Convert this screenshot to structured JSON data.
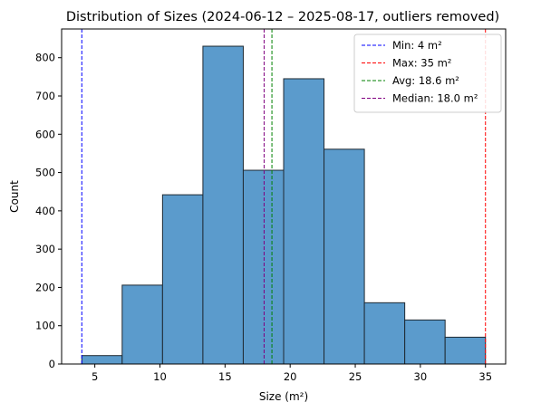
{
  "chart_data": {
    "type": "bar",
    "title": "Distribution of Sizes (2024-06-12 – 2025-08-17, outliers removed)",
    "xlabel": "Size (m²)",
    "ylabel": "Count",
    "xlim": [
      2.45,
      36.55
    ],
    "ylim": [
      0,
      875
    ],
    "xticks": [
      5,
      10,
      15,
      20,
      25,
      30,
      35
    ],
    "yticks": [
      0,
      100,
      200,
      300,
      400,
      500,
      600,
      700,
      800
    ],
    "bins": [
      {
        "x0": 4.0,
        "x1": 7.1,
        "count": 22
      },
      {
        "x0": 7.1,
        "x1": 10.2,
        "count": 206
      },
      {
        "x0": 10.2,
        "x1": 13.3,
        "count": 442
      },
      {
        "x0": 13.3,
        "x1": 16.4,
        "count": 830
      },
      {
        "x0": 16.4,
        "x1": 19.5,
        "count": 506
      },
      {
        "x0": 19.5,
        "x1": 22.6,
        "count": 745
      },
      {
        "x0": 22.6,
        "x1": 25.7,
        "count": 561
      },
      {
        "x0": 25.7,
        "x1": 28.8,
        "count": 160
      },
      {
        "x0": 28.8,
        "x1": 31.9,
        "count": 115
      },
      {
        "x0": 31.9,
        "x1": 35.0,
        "count": 70
      }
    ],
    "bar_color": "#5b9bcc",
    "bar_edge_color": "#1f2a33",
    "reference_lines": [
      {
        "label": "Min: 4 m²",
        "value": 4.0,
        "color": "#0000ff"
      },
      {
        "label": "Max: 35 m²",
        "value": 35.0,
        "color": "#ff0000"
      },
      {
        "label": "Avg: 18.6 m²",
        "value": 18.6,
        "color": "#008000"
      },
      {
        "label": "Median: 18.0 m²",
        "value": 18.0,
        "color": "#800080"
      }
    ],
    "legend_position": "top-right",
    "grid": false
  }
}
